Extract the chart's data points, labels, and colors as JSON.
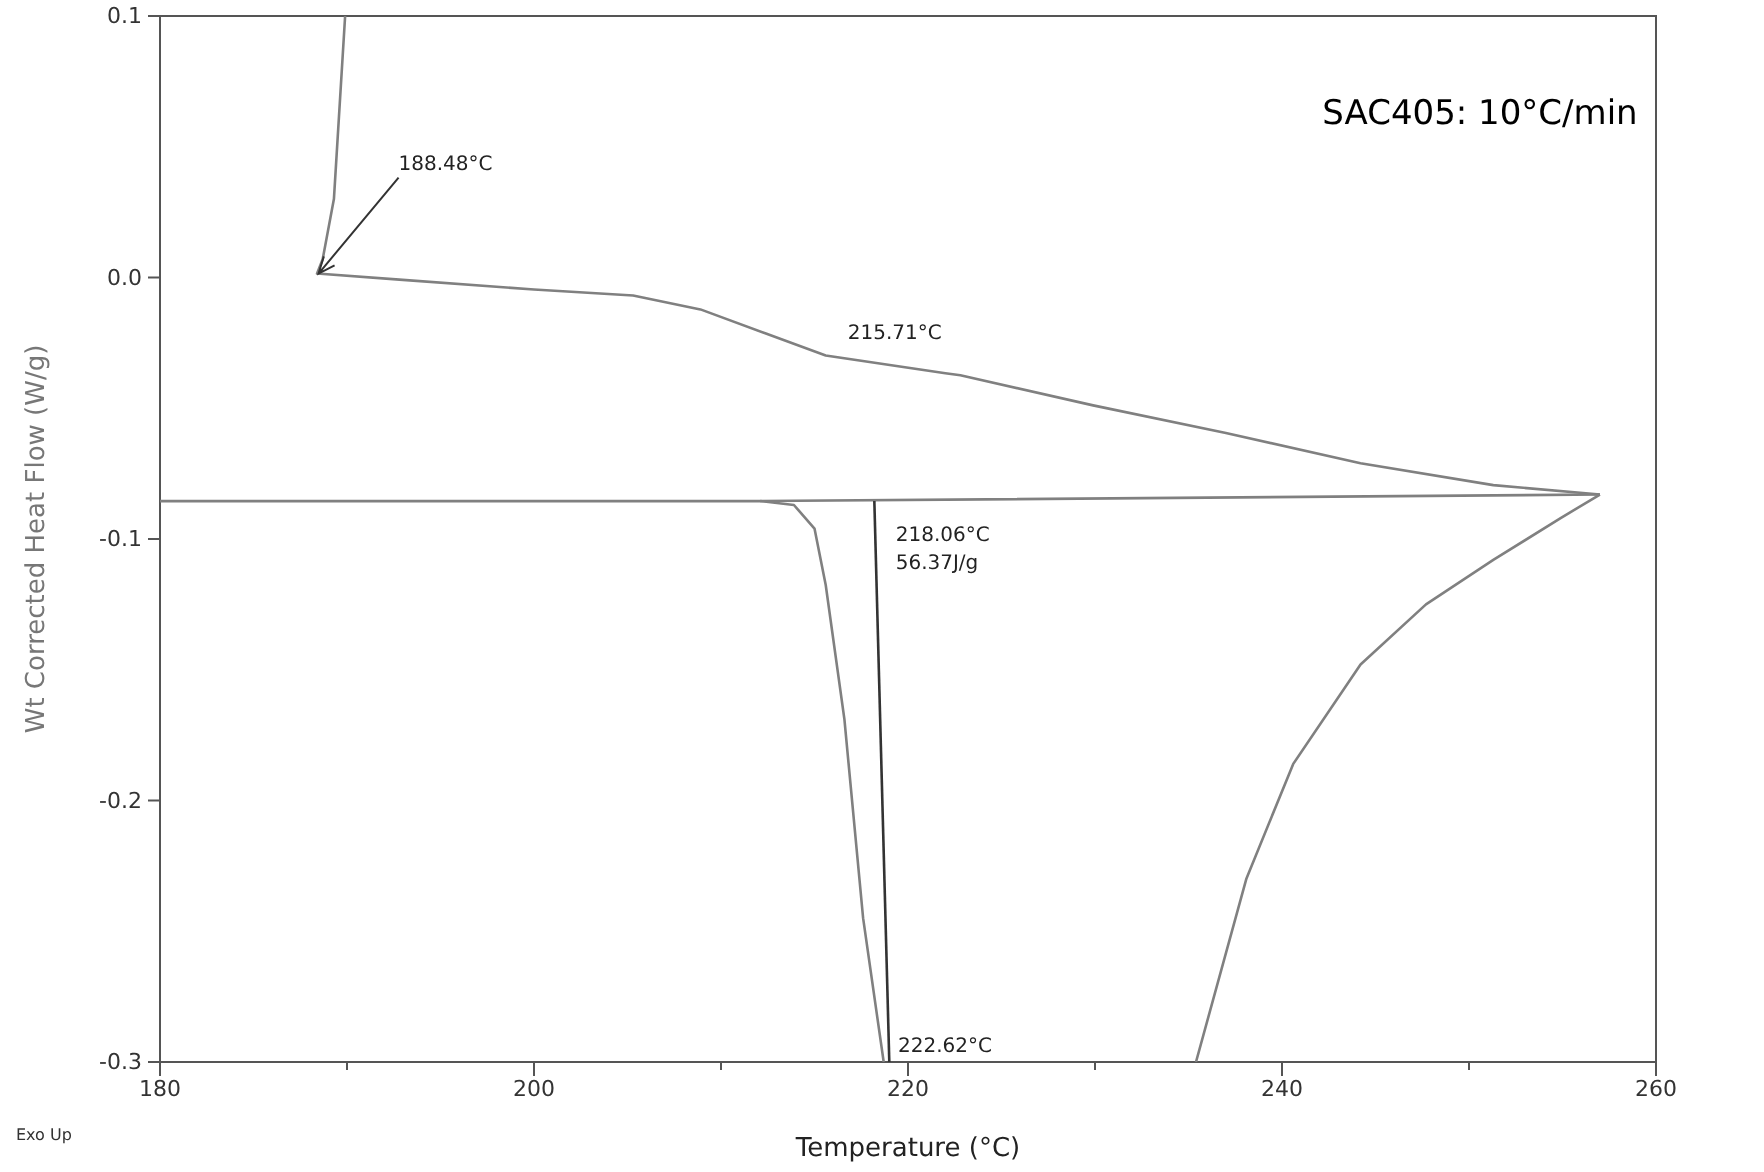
{
  "chart_data": {
    "type": "line",
    "xlabel": "Temperature (°C)",
    "ylabel": "Wt Corrected Heat Flow (W/g)",
    "xlim": [
      180,
      260
    ],
    "ylim": [
      -0.3,
      0.1
    ],
    "xticks": [
      180,
      {
        "value": 190,
        "label": null
      },
      200,
      {
        "value": 210,
        "label": null
      },
      220,
      {
        "value": 230,
        "label": null
      },
      240,
      {
        "value": 250,
        "label": null
      },
      260
    ],
    "yticks": [
      0.1,
      {
        "value": 0,
        "label": "0.0"
      },
      -0.1,
      -0.2,
      -0.3
    ],
    "grid": false,
    "marker": "none",
    "line_style": "solid",
    "series": [
      {
        "color": "#808080",
        "x": [
          189.9,
          189.3,
          188.7,
          188.4,
          192.8,
          200.0,
          205.3,
          208.9,
          212.4,
          215.6,
          222.0,
          222.8,
          229.9,
          237.0,
          244.2,
          251.3,
          257.0
        ],
        "values": [
          0.1,
          0.03,
          0.007,
          0.0015,
          -0.0008,
          -0.0046,
          -0.0069,
          -0.0122,
          -0.0214,
          -0.0298,
          -0.0366,
          -0.0374,
          -0.0489,
          -0.0595,
          -0.071,
          -0.0794,
          -0.083
        ]
      },
      {
        "color": "#808080",
        "x": [
          180,
          212.1,
          257.0
        ],
        "values": [
          -0.0855,
          -0.0855,
          -0.083
        ]
      },
      {
        "color": "#808080",
        "x": [
          212.1,
          213.9,
          215.0,
          215.6,
          216.6,
          217.6,
          218.7
        ],
        "values": [
          -0.0855,
          -0.087,
          -0.096,
          -0.1176,
          -0.169,
          -0.245,
          -0.3
        ]
      },
      {
        "color": "#808080",
        "x": [
          235.4,
          238.1,
          240.6,
          244.2,
          247.7,
          251.3,
          254.9,
          257.0
        ],
        "values": [
          -0.3,
          -0.2298,
          -0.186,
          -0.148,
          -0.125,
          -0.108,
          -0.092,
          -0.083
        ]
      },
      {
        "color": "#333333",
        "x": [
          218.2,
          219.0
        ],
        "values": [
          -0.0855,
          -0.3
        ]
      }
    ],
    "annotations": [
      "SAC405: 10°C/min",
      "Exo Up",
      {
        "text": "188.48°C",
        "x": 188.48,
        "y": 0.0015
      },
      {
        "text": "215.71°C",
        "x": 215.71,
        "y": -0.0298
      },
      {
        "text": "218.06°C\n56.37J/g",
        "x": 218.06,
        "y": -0.0855
      },
      "222.62°C"
    ]
  }
}
